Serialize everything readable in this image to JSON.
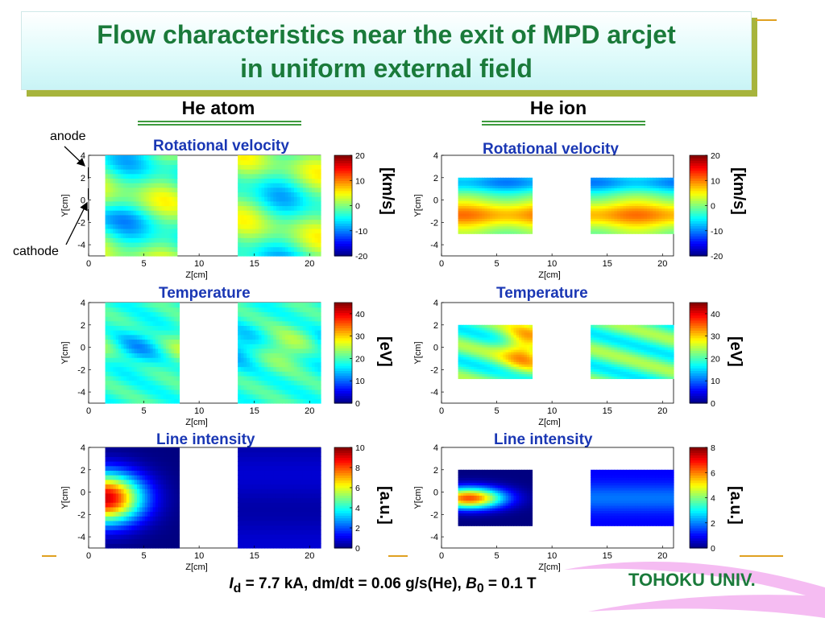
{
  "slide": {
    "title_line1": "Flow characteristics near the exit of MPD arcjet",
    "title_line2": "in uniform external field",
    "col_left": "He atom",
    "col_right": "He ion",
    "label_anode": "anode",
    "label_cathode": "cathode",
    "footer_I": "I",
    "footer_Isub": "d",
    "footer_mid": " = 7.7 kA, dm/dt = 0.06 g/s(He), ",
    "footer_B": "B",
    "footer_Bsub": "0",
    "footer_end": " = 0.1 T",
    "university": "TOHOKU UNIV.",
    "colors": {
      "title_green": "#1a7a3a",
      "panel_title_blue": "#1a37b4",
      "title_shadow": "#a7b43c",
      "accent_orange": "#e0a020"
    }
  },
  "chart_data": [
    {
      "type": "heatmap",
      "panel": "atom-velocity",
      "title": "Rotational velocity",
      "xlabel": "Z[cm]",
      "ylabel": "Y[cm]",
      "xlim": [
        0,
        21
      ],
      "ylim": [
        -5,
        4
      ],
      "xticks": [
        0,
        5,
        10,
        15,
        20
      ],
      "yticks": [
        4,
        2,
        0,
        -2,
        -4
      ],
      "colorbar": {
        "ticks": [
          20,
          10,
          0,
          -10,
          -20
        ],
        "min": -20,
        "max": 20
      },
      "unit": "[km/s]",
      "data_regions": [
        [
          1.5,
          8
        ],
        [
          13.5,
          21
        ]
      ],
      "data_ylim": [
        -5,
        4
      ],
      "mode": "atom-vel"
    },
    {
      "type": "heatmap",
      "panel": "ion-velocity",
      "title": "Rotational velocity",
      "xlabel": "Z[cm]",
      "ylabel": "Y[cm]",
      "xlim": [
        0,
        21
      ],
      "ylim": [
        -5,
        4
      ],
      "xticks": [
        0,
        5,
        10,
        15,
        20
      ],
      "yticks": [
        4,
        2,
        0,
        -2,
        -4
      ],
      "colorbar": {
        "ticks": [
          20,
          10,
          0,
          -10,
          -20
        ],
        "min": -20,
        "max": 20
      },
      "unit": "[km/s]",
      "data_regions": [
        [
          1.5,
          8.2
        ],
        [
          13.5,
          21
        ]
      ],
      "data_ylim": [
        -3,
        2
      ],
      "mode": "ion-vel"
    },
    {
      "type": "heatmap",
      "panel": "atom-temperature",
      "title": "Temperature",
      "xlabel": "Z[cm]",
      "ylabel": "Y[cm]",
      "xlim": [
        0,
        21
      ],
      "ylim": [
        -5,
        4
      ],
      "xticks": [
        0,
        5,
        10,
        15,
        20
      ],
      "yticks": [
        4,
        2,
        0,
        -2,
        -4
      ],
      "colorbar": {
        "ticks": [
          40,
          30,
          20,
          10,
          0
        ],
        "min": 0,
        "max": 45
      },
      "unit": "[eV]",
      "data_regions": [
        [
          1.5,
          8.2
        ],
        [
          13.5,
          21
        ]
      ],
      "data_ylim": [
        -5,
        4
      ],
      "mode": "atom-temp"
    },
    {
      "type": "heatmap",
      "panel": "ion-temperature",
      "title": "Temperature",
      "xlabel": "Z[cm]",
      "ylabel": "Y[cm]",
      "xlim": [
        0,
        21
      ],
      "ylim": [
        -5,
        4
      ],
      "xticks": [
        0,
        5,
        10,
        15,
        20
      ],
      "yticks": [
        4,
        2,
        0,
        -2,
        -4
      ],
      "colorbar": {
        "ticks": [
          40,
          30,
          20,
          10,
          0
        ],
        "min": 0,
        "max": 45
      },
      "unit": "[eV]",
      "data_regions": [
        [
          1.5,
          8.2
        ],
        [
          13.5,
          21
        ]
      ],
      "data_ylim": [
        -2.8,
        2
      ],
      "mode": "ion-temp"
    },
    {
      "type": "heatmap",
      "panel": "atom-intensity",
      "title": "Line intensity",
      "xlabel": "Z[cm]",
      "ylabel": "Y[cm]",
      "xlim": [
        0,
        21
      ],
      "ylim": [
        -5,
        4
      ],
      "xticks": [
        0,
        5,
        10,
        15,
        20
      ],
      "yticks": [
        4,
        2,
        0,
        -2,
        -4
      ],
      "colorbar": {
        "ticks": [
          10,
          8,
          6,
          4,
          2,
          0
        ],
        "min": 0,
        "max": 10
      },
      "unit": "[a.u.]",
      "data_regions": [
        [
          1.5,
          8.2
        ],
        [
          13.5,
          21
        ]
      ],
      "data_ylim": [
        -5,
        4
      ],
      "mode": "atom-int"
    },
    {
      "type": "heatmap",
      "panel": "ion-intensity",
      "title": "Line intensity",
      "xlabel": "Z[cm]",
      "ylabel": "Y[cm]",
      "xlim": [
        0,
        21
      ],
      "ylim": [
        -5,
        4
      ],
      "xticks": [
        0,
        5,
        10,
        15,
        20
      ],
      "yticks": [
        4,
        2,
        0,
        -2,
        -4
      ],
      "colorbar": {
        "ticks": [
          8,
          6,
          4,
          2,
          0
        ],
        "min": 0,
        "max": 8
      },
      "unit": "[a.u.]",
      "data_regions": [
        [
          1.5,
          8.2
        ],
        [
          13.5,
          21
        ]
      ],
      "data_ylim": [
        -3,
        2
      ],
      "mode": "ion-int"
    }
  ]
}
